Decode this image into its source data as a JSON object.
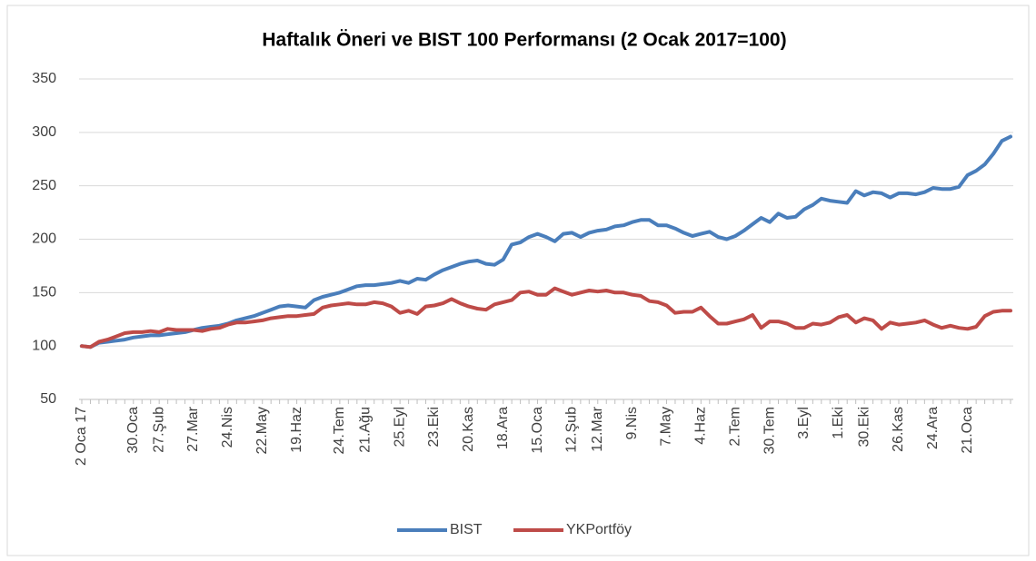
{
  "chart_data": {
    "type": "line",
    "title": "Haftalık Öneri ve BIST 100 Performansı (2 Ocak 2017=100)",
    "categories": [
      "2 Oca 17",
      null,
      null,
      null,
      null,
      null,
      "30.Oca",
      null,
      null,
      "27.Şub",
      null,
      null,
      null,
      "27.Mar",
      null,
      null,
      null,
      "24.Nis",
      null,
      null,
      null,
      "22.May",
      null,
      null,
      null,
      "19.Haz",
      null,
      null,
      null,
      null,
      "24.Tem",
      null,
      null,
      "21.Ağu",
      null,
      null,
      null,
      "25.Eyl",
      null,
      null,
      null,
      "23.Eki",
      null,
      null,
      null,
      "20.Kas",
      null,
      null,
      null,
      "18.Ara",
      null,
      null,
      null,
      "15.Oca",
      null,
      null,
      null,
      "12.Şub",
      null,
      null,
      "12.Mar",
      null,
      null,
      null,
      "9.Nis",
      null,
      null,
      null,
      "7.May",
      null,
      null,
      null,
      "4.Haz",
      null,
      null,
      null,
      "2.Tem",
      null,
      null,
      null,
      "30.Tem",
      null,
      null,
      null,
      "3.Eyl",
      null,
      null,
      null,
      "1.Eki",
      null,
      null,
      "30.Eki",
      null,
      null,
      null,
      "26.Kas",
      null,
      null,
      null,
      "24.Ara",
      null,
      null,
      null,
      "21.Oca",
      null,
      null,
      null,
      null,
      null
    ],
    "series": [
      {
        "name": "BIST",
        "color": "#4a7ebb",
        "values": [
          100,
          99,
          103,
          104,
          105,
          106,
          108,
          109,
          110,
          110,
          111,
          112,
          113,
          115,
          117,
          118,
          119,
          121,
          124,
          126,
          128,
          131,
          134,
          137,
          138,
          137,
          136,
          143,
          146,
          148,
          150,
          153,
          156,
          157,
          157,
          158,
          159,
          161,
          159,
          163,
          162,
          167,
          171,
          174,
          177,
          179,
          180,
          177,
          176,
          181,
          195,
          197,
          202,
          205,
          202,
          198,
          205,
          206,
          202,
          206,
          208,
          209,
          212,
          213,
          216,
          218,
          218,
          213,
          213,
          210,
          206,
          203,
          205,
          207,
          202,
          200,
          203,
          208,
          214,
          220,
          216,
          224,
          220,
          221,
          228,
          232,
          238,
          236,
          235,
          234,
          245,
          241,
          244,
          243,
          239,
          243,
          243,
          242,
          244,
          248,
          247,
          247,
          249,
          260,
          264,
          270,
          280,
          292,
          296
        ]
      },
      {
        "name": "YKPortföy",
        "color": "#be4b48",
        "values": [
          100,
          99,
          104,
          106,
          109,
          112,
          113,
          113,
          114,
          113,
          116,
          115,
          115,
          115,
          114,
          116,
          117,
          120,
          122,
          122,
          123,
          124,
          126,
          127,
          128,
          128,
          129,
          130,
          136,
          138,
          139,
          140,
          139,
          139,
          141,
          140,
          137,
          131,
          133,
          130,
          137,
          138,
          140,
          144,
          140,
          137,
          135,
          134,
          139,
          141,
          143,
          150,
          151,
          148,
          148,
          154,
          151,
          148,
          150,
          152,
          151,
          152,
          150,
          150,
          148,
          147,
          142,
          141,
          138,
          131,
          132,
          132,
          136,
          128,
          121,
          121,
          123,
          125,
          129,
          117,
          123,
          123,
          121,
          117,
          117,
          121,
          120,
          122,
          127,
          129,
          122,
          126,
          124,
          116,
          122,
          120,
          121,
          122,
          124,
          120,
          117,
          119,
          117,
          116,
          118,
          128,
          132,
          133,
          133
        ]
      }
    ],
    "ylim": [
      50,
      350
    ],
    "yticks": [
      50,
      100,
      150,
      200,
      250,
      300,
      350
    ],
    "grid": true,
    "legend": "bottom"
  }
}
